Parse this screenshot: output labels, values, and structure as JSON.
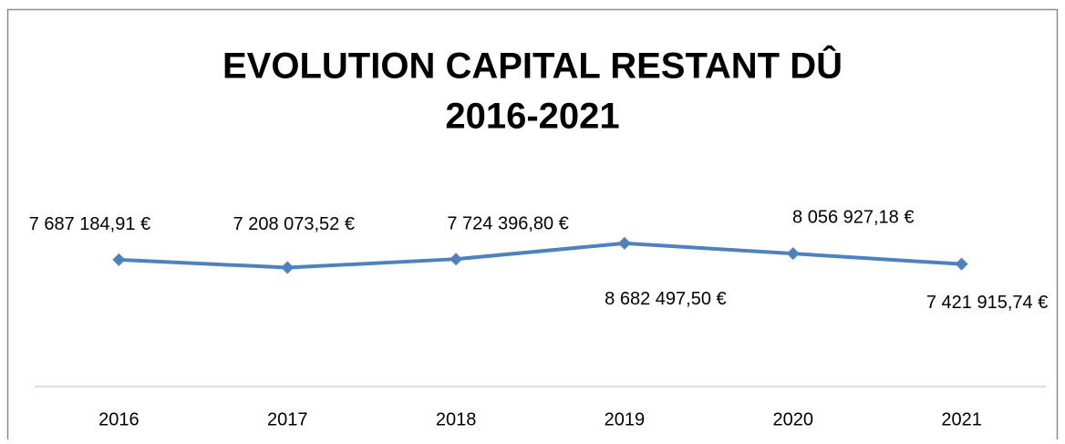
{
  "chart_data": {
    "type": "line",
    "title": [
      "EVOLUTION CAPITAL RESTANT DÛ",
      "2016-2021"
    ],
    "categories": [
      "2016",
      "2017",
      "2018",
      "2019",
      "2020",
      "2021"
    ],
    "series": [
      {
        "color": "#4f81bd",
        "values": [
          7687184.91,
          7208073.52,
          7724396.8,
          8682497.5,
          8056927.18,
          7421915.74
        ],
        "value_labels": [
          "7 687 184,91 €",
          "7 208 073,52 €",
          "7 724 396,80 €",
          "8 682 497,50 €",
          "8 056 927,18 €",
          "7 421 915,74 €"
        ]
      }
    ],
    "ylim": [
      0,
      10000000
    ]
  }
}
